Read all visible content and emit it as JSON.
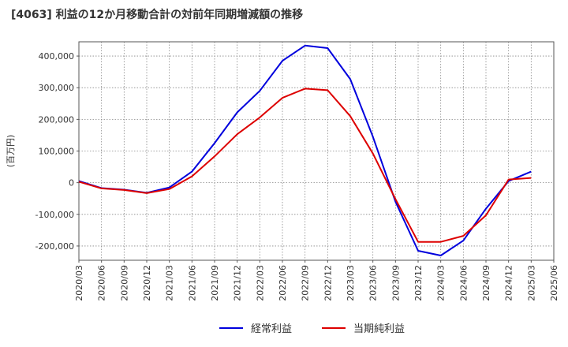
{
  "chart_data": {
    "type": "line",
    "title": "[4063]  利益の12か月移動合計の対前年同期増減額の推移",
    "ylabel": "(百万円)",
    "xlabel": "",
    "ylim": [
      -245000,
      445000
    ],
    "yticks": [
      -200000,
      -100000,
      0,
      100000,
      200000,
      300000,
      400000
    ],
    "ytick_labels": [
      "-200,000",
      "-100,000",
      "0",
      "100,000",
      "200,000",
      "300,000",
      "400,000"
    ],
    "categories": [
      "2020/03",
      "2020/06",
      "2020/09",
      "2020/12",
      "2021/03",
      "2021/06",
      "2021/09",
      "2021/12",
      "2022/03",
      "2022/06",
      "2022/09",
      "2022/12",
      "2023/03",
      "2023/06",
      "2023/09",
      "2023/12",
      "2024/03",
      "2024/06",
      "2024/09",
      "2024/12",
      "2025/03",
      "2025/06"
    ],
    "grid": true,
    "legend_position": "bottom",
    "series": [
      {
        "name": "経常利益",
        "color": "#0000dd",
        "values": [
          5000,
          -17000,
          -22000,
          -32000,
          -15000,
          35000,
          125000,
          222000,
          290000,
          385000,
          433000,
          425000,
          327000,
          145000,
          -60000,
          -215000,
          -230000,
          -183000,
          -82000,
          5000,
          35000,
          null
        ]
      },
      {
        "name": "当期純利益",
        "color": "#dd0000",
        "values": [
          3000,
          -18000,
          -23000,
          -33000,
          -20000,
          20000,
          83000,
          153000,
          206000,
          268000,
          297000,
          292000,
          210000,
          92000,
          -52000,
          -187000,
          -187000,
          -168000,
          -103000,
          10000,
          15000,
          null
        ]
      }
    ]
  }
}
